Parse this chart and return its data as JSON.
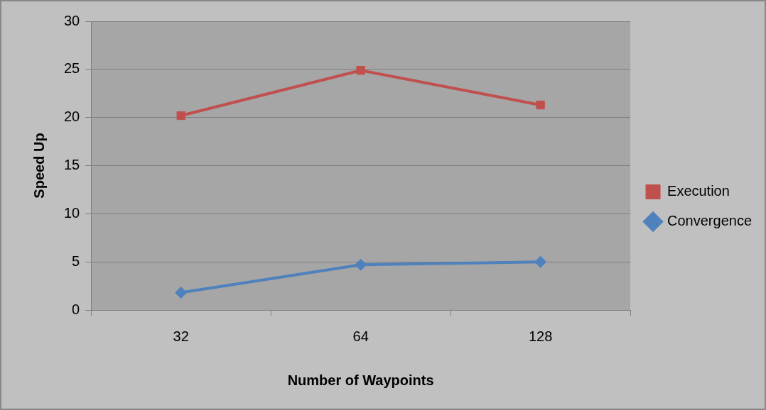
{
  "chart_data": {
    "type": "line",
    "xlabel": "Number of Waypoints",
    "ylabel": "Speed Up",
    "categories": [
      "32",
      "64",
      "128"
    ],
    "series": [
      {
        "name": "Execution",
        "color": "#c0504d",
        "values": [
          20.2,
          24.9,
          21.3
        ],
        "marker": "square"
      },
      {
        "name": "Convergence",
        "color": "#4f81bd",
        "values": [
          1.8,
          4.7,
          5.0
        ],
        "marker": "diamond"
      }
    ],
    "ylim": [
      0,
      30
    ],
    "yticks": [
      0,
      5,
      10,
      15,
      20,
      25,
      30
    ],
    "grid": "y",
    "legend": "right"
  }
}
